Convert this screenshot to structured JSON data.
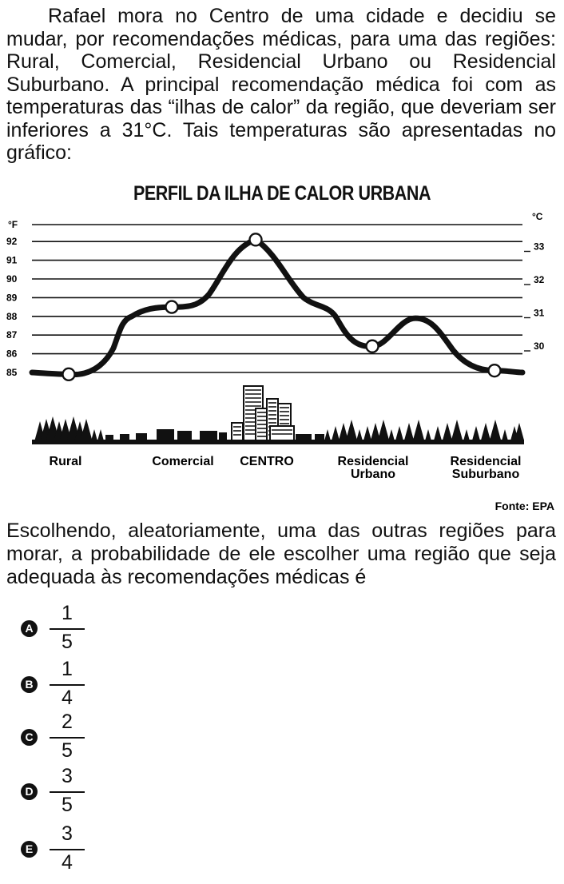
{
  "intro_text": "Rafael mora no Centro de uma cidade e decidiu se mudar, por recomendações médicas, para uma das regiões: Rural, Comercial, Residencial Urbano ou Residencial Suburbano. A principal recomendação médica foi com as temperaturas das “ilhas de calor” da região, que deveriam ser inferiores a 31°C. Tais temperaturas são apresentadas no gráfico:",
  "question_text": "Escolhendo, aleatoriamente, uma das outras regiões para morar, a probabilidade de ele escolher uma região que seja adequada às recomendações médicas é",
  "chart_data": {
    "type": "line",
    "title": "PERFIL DA ILHA DE CALOR URBANA",
    "left_axis_unit": "°F",
    "right_axis_unit": "°C",
    "left_ticks": [
      92,
      91,
      90,
      89,
      88,
      87,
      86,
      85
    ],
    "right_ticks": [
      33,
      32,
      31,
      30
    ],
    "ylim_f": [
      85,
      92.8
    ],
    "grid": true,
    "regions": [
      {
        "label": "Rural",
        "value_f": 84.9
      },
      {
        "label": "Comercial",
        "value_f": 88.5
      },
      {
        "label": "CENTRO",
        "value_f": 92.1
      },
      {
        "label": "Residencial Urbano",
        "value_f": 86.4
      },
      {
        "label": "Residencial Suburbano",
        "value_f": 85.1
      }
    ],
    "source": "Fonte: EPA"
  },
  "options": [
    {
      "letter": "A",
      "numerator": "1",
      "denominator": "5"
    },
    {
      "letter": "B",
      "numerator": "1",
      "denominator": "4"
    },
    {
      "letter": "C",
      "numerator": "2",
      "denominator": "5"
    },
    {
      "letter": "D",
      "numerator": "3",
      "denominator": "5"
    },
    {
      "letter": "E",
      "numerator": "3",
      "denominator": "4"
    }
  ]
}
